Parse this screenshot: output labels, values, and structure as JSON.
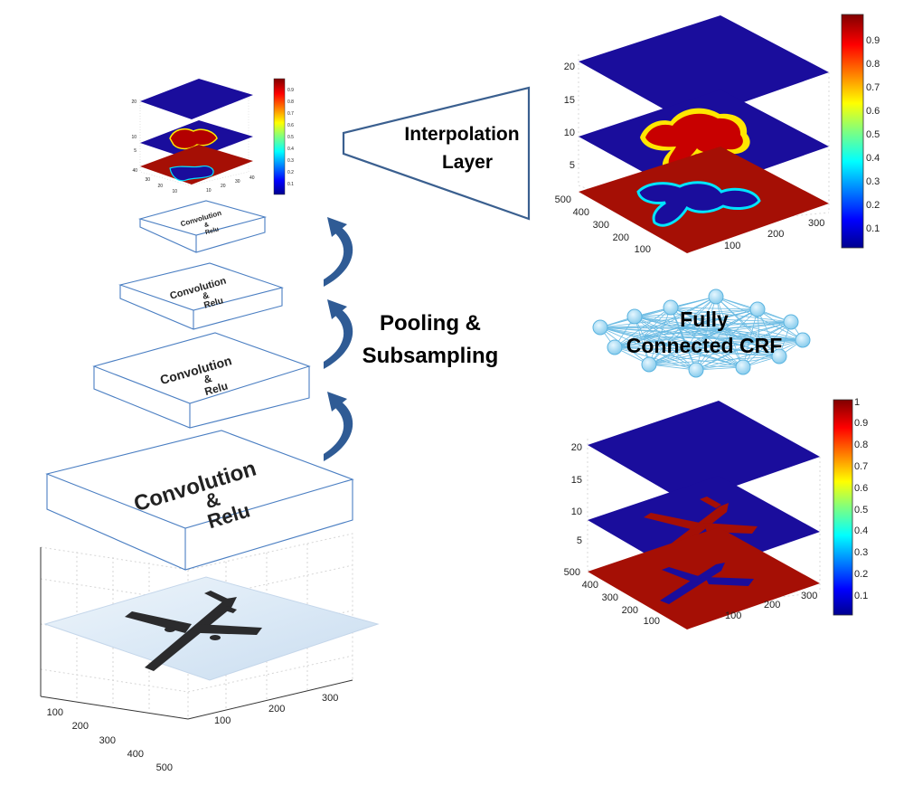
{
  "labels": {
    "interpolation_line1": "Interpolation",
    "interpolation_line2": "Layer",
    "pooling_line1": "Pooling &",
    "pooling_line2": "Subsampling",
    "crf_line1": "Fully",
    "crf_line2": "Connected CRF"
  },
  "conv_boxes": [
    {
      "line1": "Convolution",
      "line2": "&",
      "line3": "Relu"
    },
    {
      "line1": "Convolution",
      "line2": "&",
      "line3": "Relu"
    },
    {
      "line1": "Convolution",
      "line2": "&",
      "line3": "Relu"
    },
    {
      "line1": "Convolution",
      "line2": "&",
      "line3": "Relu"
    }
  ],
  "input_plot": {
    "x_ticks": [
      "100",
      "200",
      "300",
      "400",
      "500"
    ],
    "y_ticks": [
      "100",
      "200",
      "300"
    ]
  },
  "small_plot": {
    "z_ticks": [
      "20",
      "10",
      "5"
    ],
    "depth_ticks": [
      "40",
      "30",
      "20",
      "10"
    ],
    "right_ticks": [
      "10",
      "20",
      "30",
      "40"
    ],
    "colorbar_ticks": [
      "0.9",
      "0.8",
      "0.7",
      "0.6",
      "0.5",
      "0.4",
      "0.3",
      "0.2",
      "0.1"
    ]
  },
  "upper_plot": {
    "z_ticks": [
      "20",
      "15",
      "10",
      "5"
    ],
    "depth_ticks": [
      "500",
      "400",
      "300",
      "200",
      "100"
    ],
    "right_ticks": [
      "100",
      "200",
      "300"
    ],
    "colorbar_ticks": [
      "0.9",
      "0.8",
      "0.7",
      "0.6",
      "0.5",
      "0.4",
      "0.3",
      "0.2",
      "0.1"
    ]
  },
  "lower_plot": {
    "z_ticks": [
      "20",
      "15",
      "10",
      "5"
    ],
    "depth_ticks": [
      "500",
      "400",
      "300",
      "200",
      "100"
    ],
    "right_ticks": [
      "100",
      "200",
      "300"
    ],
    "colorbar_ticks": [
      "1",
      "0.9",
      "0.8",
      "0.7",
      "0.6",
      "0.5",
      "0.4",
      "0.3",
      "0.2",
      "0.1"
    ]
  },
  "colors": {
    "box_stroke": "#4a7ec2",
    "arrow_fill": "#2f5b95",
    "trapezoid_stroke": "#3a5f8f",
    "slice_blue": "#1a0d9c",
    "slice_red": "#a50f05",
    "crf_node": "#a9dcf2",
    "crf_edge": "#5bb4e0"
  }
}
